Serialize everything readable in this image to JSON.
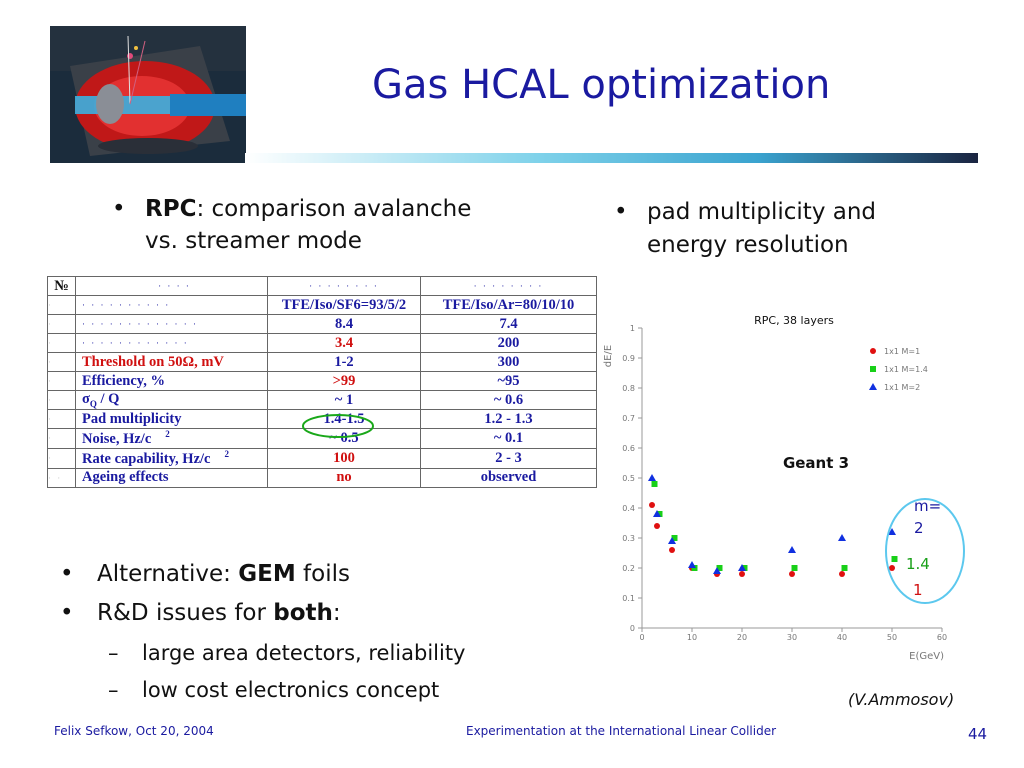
{
  "slide": {
    "title": "Gas HCAL optimization",
    "left_bullet": {
      "bold": "RPC",
      "rest_line1": ": comparison avalanche",
      "line2": "vs. streamer mode"
    },
    "right_bullet": {
      "line1": "pad multiplicity and",
      "line2": "energy resolution"
    },
    "bullets2": [
      {
        "pre": "Alternative: ",
        "bold": "GEM",
        "post": " foils"
      },
      {
        "pre": "R&D issues for ",
        "bold": "both",
        "post": ":"
      }
    ],
    "subbullets": [
      "large area detectors, reliability",
      "low cost electronics concept"
    ],
    "credit": "(V.Ammosov)",
    "footer": {
      "left": "Felix Sefkow, Oct 20, 2004",
      "center": "Experimentation at the International Linear Collider",
      "page": "44"
    }
  },
  "table": {
    "header": [
      "№",
      "· · · ·",
      "· · · · · · · ·",
      "· · · · · · · ·"
    ],
    "rows": [
      [
        "·",
        "· · · · · · · · · ·",
        "TFE/Iso/SF6=93/5/2",
        "TFE/Iso/Ar=80/10/10"
      ],
      [
        "·",
        "· · · · · · · · · · · · ·",
        "8.4",
        "7.4"
      ],
      [
        "·",
        "· · · · · · · · · · · ·",
        "3.4",
        "200"
      ],
      [
        "·",
        "Threshold on 50Ω, mV",
        "1-2",
        "300"
      ],
      [
        "·",
        "Efficiency, %",
        ">99",
        "~95"
      ],
      [
        "·",
        "σQ / Q",
        "~ 1",
        "~ 0.6"
      ],
      [
        "·",
        "Pad multiplicity",
        "1.4-1.5",
        "1.2 - 1.3"
      ],
      [
        "·",
        "Noise, Hz/c",
        "~ 0.5",
        "~ 0.1"
      ],
      [
        "·",
        "Rate capability, Hz/c",
        "100",
        "2 - 3"
      ],
      [
        "· ·",
        "Ageing effects",
        "no",
        "observed"
      ]
    ],
    "superscript": "2",
    "red_cells": [
      [
        2,
        2
      ],
      [
        3,
        1
      ],
      [
        4,
        2
      ],
      [
        8,
        2
      ],
      [
        9,
        2
      ]
    ]
  },
  "chart_data": {
    "type": "scatter",
    "title": "RPC, 38 layers",
    "xlabel": "E(GeV)",
    "ylabel": "dE/E",
    "xlim": [
      0,
      60
    ],
    "ylim": [
      0,
      1
    ],
    "xticks": [
      "0",
      "10",
      "20",
      "30",
      "40",
      "50",
      "60"
    ],
    "yticks": [
      "0",
      "0.1",
      "0.2",
      "0.3",
      "0.4",
      "0.5",
      "0.6",
      "0.7",
      "0.8",
      "0.9",
      "1"
    ],
    "grid": false,
    "legend_position": "top-right",
    "series": [
      {
        "name": "1x1 M=1",
        "color": "#e01010",
        "marker": "circle",
        "x": [
          2,
          3,
          6,
          10,
          15,
          20,
          30,
          40,
          50
        ],
        "y": [
          0.41,
          0.34,
          0.26,
          0.2,
          0.18,
          0.18,
          0.18,
          0.18,
          0.2
        ]
      },
      {
        "name": "1x1 M=1.4",
        "color": "#18d018",
        "marker": "square",
        "x": [
          2.5,
          3.5,
          6.5,
          10.5,
          15.5,
          20.5,
          30.5,
          40.5,
          50.5
        ],
        "y": [
          0.48,
          0.38,
          0.3,
          0.2,
          0.2,
          0.2,
          0.2,
          0.2,
          0.23
        ]
      },
      {
        "name": "1x1 M=2",
        "color": "#1030e0",
        "marker": "triangle",
        "x": [
          2,
          3,
          6,
          10,
          15,
          20,
          30,
          40,
          50
        ],
        "y": [
          0.5,
          0.38,
          0.29,
          0.21,
          0.19,
          0.2,
          0.26,
          0.3,
          0.32
        ]
      }
    ],
    "annotations": {
      "geant": "Geant 3",
      "m_label_1": "m=",
      "m_label_2": "2",
      "m_14": "1.4",
      "m_1": "1"
    }
  },
  "colors": {
    "title": "#1a1aa0",
    "highlight_ellipse": "#1aa81a",
    "highlight_oval": "#5cc8ee"
  }
}
